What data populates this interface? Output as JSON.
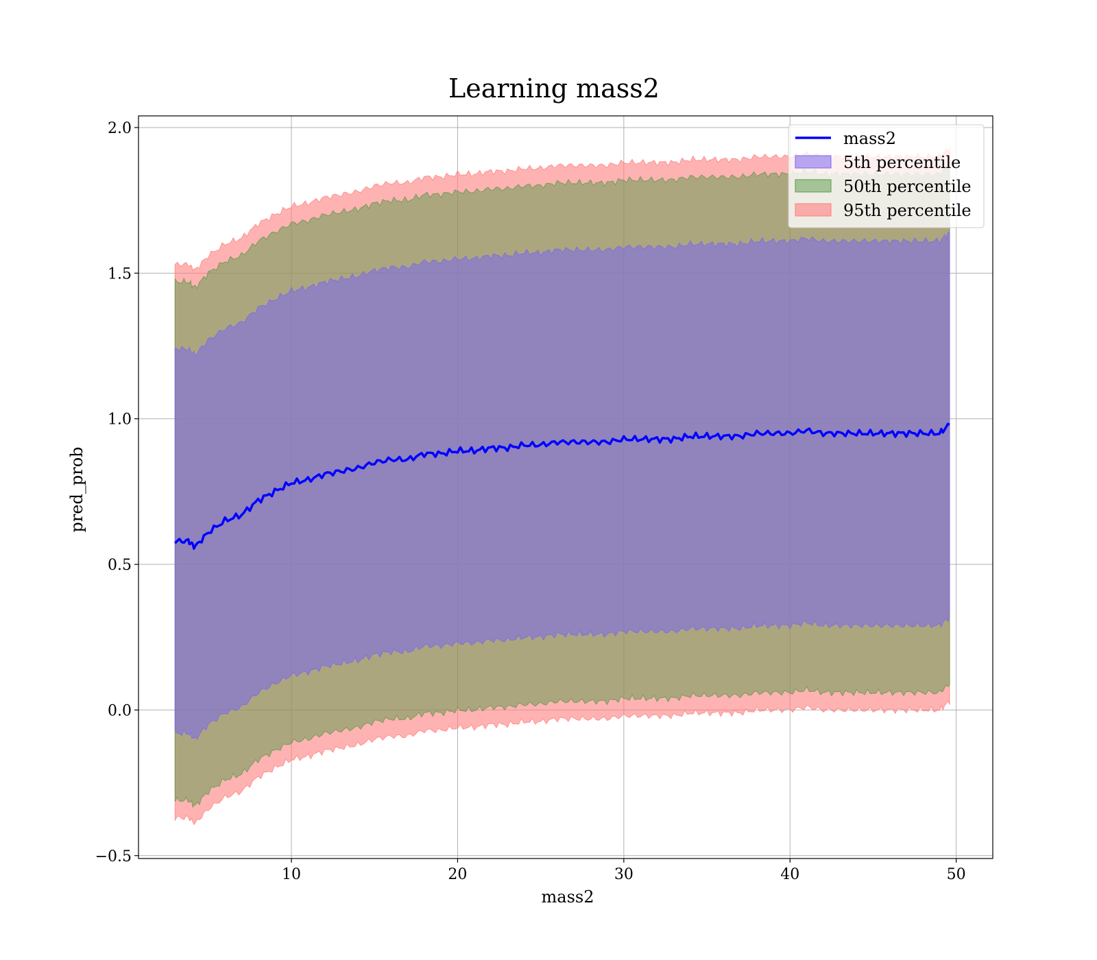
{
  "chart_data": {
    "type": "area",
    "title": "Learning mass2",
    "xlabel": "mass2",
    "ylabel": "pred_prob",
    "xlim": [
      0.8,
      52.2
    ],
    "ylim": [
      -0.51,
      2.04
    ],
    "xticks": [
      10,
      20,
      30,
      40,
      50
    ],
    "xtick_labels": [
      "10",
      "20",
      "30",
      "40",
      "50"
    ],
    "yticks": [
      -0.5,
      0.0,
      0.5,
      1.0,
      1.5,
      2.0
    ],
    "ytick_labels": [
      "−0.5",
      "0.0",
      "0.5",
      "1.0",
      "1.5",
      "2.0"
    ],
    "grid": true,
    "legend_position": "top-right",
    "line": {
      "name": "mass2",
      "color": "#0000ff",
      "x": [
        3.0,
        3.8,
        4.2,
        5.0,
        6.0,
        7.0,
        8.0,
        9.0,
        10.0,
        11.0,
        12.0,
        13.0,
        14.0,
        15.0,
        16.0,
        17.0,
        18.0,
        19.0,
        20.0,
        21.0,
        22.0,
        23.0,
        24.0,
        25.0,
        26.0,
        27.0,
        28.0,
        29.0,
        30.0,
        31.0,
        32.0,
        33.0,
        34.0,
        35.0,
        36.0,
        37.0,
        38.0,
        39.0,
        40.0,
        41.0,
        42.0,
        43.0,
        44.0,
        45.0,
        46.0,
        47.0,
        48.0,
        49.0,
        49.6
      ],
      "y": [
        0.58,
        0.58,
        0.56,
        0.61,
        0.65,
        0.67,
        0.72,
        0.75,
        0.78,
        0.79,
        0.81,
        0.82,
        0.83,
        0.85,
        0.86,
        0.86,
        0.88,
        0.88,
        0.89,
        0.89,
        0.9,
        0.9,
        0.91,
        0.91,
        0.92,
        0.92,
        0.92,
        0.92,
        0.93,
        0.93,
        0.93,
        0.93,
        0.94,
        0.94,
        0.94,
        0.94,
        0.95,
        0.95,
        0.95,
        0.96,
        0.95,
        0.95,
        0.95,
        0.95,
        0.95,
        0.95,
        0.95,
        0.95,
        0.98
      ]
    },
    "bands": [
      {
        "name": "5th percentile",
        "color": "#7b68ee",
        "opacity": 0.55,
        "upper": [
          1.24,
          1.24,
          1.22,
          1.27,
          1.31,
          1.33,
          1.38,
          1.41,
          1.44,
          1.45,
          1.47,
          1.48,
          1.49,
          1.51,
          1.52,
          1.52,
          1.54,
          1.54,
          1.55,
          1.55,
          1.56,
          1.56,
          1.57,
          1.57,
          1.58,
          1.58,
          1.58,
          1.58,
          1.59,
          1.59,
          1.59,
          1.59,
          1.6,
          1.6,
          1.6,
          1.6,
          1.61,
          1.61,
          1.61,
          1.62,
          1.61,
          1.61,
          1.61,
          1.61,
          1.61,
          1.61,
          1.61,
          1.61,
          1.64
        ],
        "lower": [
          -0.08,
          -0.08,
          -0.1,
          -0.05,
          -0.01,
          0.01,
          0.06,
          0.09,
          0.12,
          0.13,
          0.15,
          0.16,
          0.17,
          0.19,
          0.2,
          0.2,
          0.22,
          0.22,
          0.23,
          0.23,
          0.24,
          0.24,
          0.25,
          0.25,
          0.26,
          0.26,
          0.26,
          0.26,
          0.27,
          0.27,
          0.27,
          0.27,
          0.28,
          0.28,
          0.28,
          0.28,
          0.29,
          0.29,
          0.29,
          0.3,
          0.29,
          0.29,
          0.29,
          0.29,
          0.29,
          0.29,
          0.29,
          0.29,
          0.32
        ]
      },
      {
        "name": "50th percentile",
        "color": "#5a9a4a",
        "opacity": 0.5,
        "upper": [
          1.47,
          1.47,
          1.45,
          1.5,
          1.54,
          1.56,
          1.61,
          1.64,
          1.67,
          1.68,
          1.7,
          1.71,
          1.72,
          1.74,
          1.75,
          1.75,
          1.77,
          1.77,
          1.78,
          1.78,
          1.79,
          1.79,
          1.8,
          1.8,
          1.81,
          1.81,
          1.81,
          1.81,
          1.82,
          1.82,
          1.82,
          1.82,
          1.83,
          1.83,
          1.83,
          1.83,
          1.84,
          1.84,
          1.84,
          1.85,
          1.84,
          1.84,
          1.84,
          1.84,
          1.84,
          1.84,
          1.84,
          1.84,
          1.87
        ],
        "lower": [
          -0.31,
          -0.31,
          -0.33,
          -0.28,
          -0.24,
          -0.22,
          -0.17,
          -0.14,
          -0.11,
          -0.1,
          -0.08,
          -0.07,
          -0.06,
          -0.04,
          -0.03,
          -0.03,
          -0.01,
          -0.01,
          0.0,
          0.0,
          0.01,
          0.01,
          0.02,
          0.02,
          0.03,
          0.03,
          0.03,
          0.03,
          0.04,
          0.04,
          0.04,
          0.04,
          0.05,
          0.05,
          0.05,
          0.05,
          0.06,
          0.06,
          0.06,
          0.07,
          0.06,
          0.06,
          0.06,
          0.06,
          0.06,
          0.06,
          0.06,
          0.06,
          0.09
        ]
      },
      {
        "name": "95th percentile",
        "color": "#ff7f7f",
        "opacity": 0.6,
        "upper": [
          1.53,
          1.53,
          1.51,
          1.56,
          1.6,
          1.62,
          1.67,
          1.7,
          1.73,
          1.74,
          1.76,
          1.77,
          1.78,
          1.8,
          1.81,
          1.81,
          1.83,
          1.83,
          1.84,
          1.84,
          1.85,
          1.85,
          1.86,
          1.86,
          1.87,
          1.87,
          1.87,
          1.87,
          1.88,
          1.88,
          1.88,
          1.88,
          1.89,
          1.89,
          1.89,
          1.89,
          1.9,
          1.9,
          1.9,
          1.91,
          1.9,
          1.9,
          1.9,
          1.9,
          1.9,
          1.9,
          1.9,
          1.9,
          1.93
        ],
        "lower": [
          -0.37,
          -0.37,
          -0.39,
          -0.34,
          -0.3,
          -0.28,
          -0.23,
          -0.2,
          -0.17,
          -0.16,
          -0.14,
          -0.13,
          -0.12,
          -0.1,
          -0.09,
          -0.09,
          -0.07,
          -0.07,
          -0.06,
          -0.06,
          -0.05,
          -0.05,
          -0.04,
          -0.04,
          -0.03,
          -0.03,
          -0.03,
          -0.03,
          -0.02,
          -0.02,
          -0.02,
          -0.02,
          -0.01,
          -0.01,
          -0.01,
          -0.01,
          0.0,
          0.0,
          0.0,
          0.01,
          0.0,
          0.0,
          0.0,
          0.0,
          0.0,
          0.0,
          0.0,
          0.0,
          0.03
        ]
      }
    ]
  }
}
